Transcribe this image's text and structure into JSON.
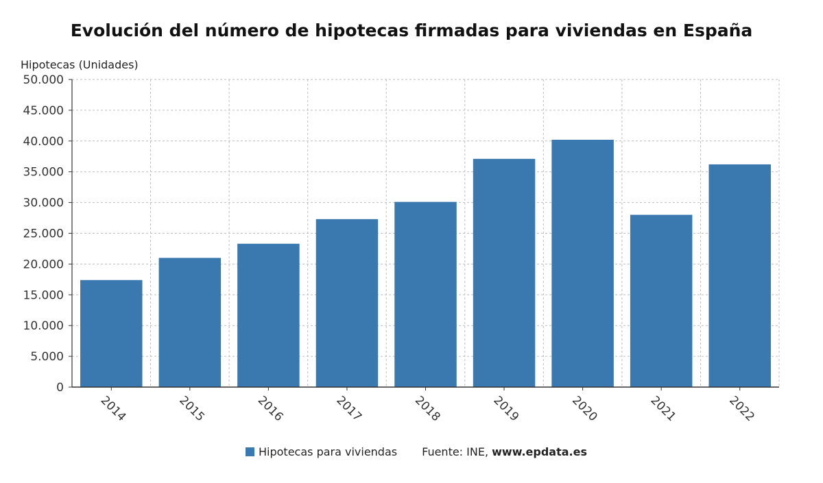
{
  "chart_data": {
    "type": "bar",
    "title": "Evolución del número de hipotecas firmadas para viviendas en España",
    "ylabel": "Hipotecas (Unidades)",
    "xlabel": "",
    "categories": [
      "2014",
      "2015",
      "2016",
      "2017",
      "2018",
      "2019",
      "2020",
      "2021",
      "2022"
    ],
    "series": [
      {
        "name": "Hipotecas para viviendas",
        "values": [
          17400,
          21000,
          23300,
          27300,
          30100,
          37100,
          40200,
          28000,
          36200
        ]
      }
    ],
    "ylim": [
      0,
      50000
    ],
    "yticks": [
      0,
      5000,
      10000,
      15000,
      20000,
      25000,
      30000,
      35000,
      40000,
      45000,
      50000
    ],
    "ytick_labels": [
      "0",
      "5.000",
      "10.000",
      "15.000",
      "20.000",
      "25.000",
      "30.000",
      "35.000",
      "40.000",
      "45.000",
      "50.000"
    ],
    "grid": true,
    "legend_position": "bottom",
    "bar_color": "#3a78b0"
  },
  "source": {
    "prefix": "Fuente: INE, ",
    "url": "www.epdata.es"
  }
}
